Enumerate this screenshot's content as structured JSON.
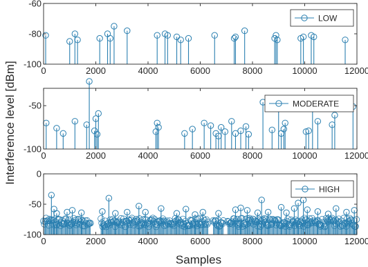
{
  "chart_data": {
    "type": "stem",
    "xlabel": "Samples",
    "ylabel": "Interference level [dBm]",
    "x_ticks": [
      "0",
      "2000",
      "4000",
      "6000",
      "8000",
      "10000",
      "12000"
    ],
    "xlim": [
      0,
      12000
    ],
    "colors": {
      "stem": "#2a7fb0",
      "axis": "#262626"
    },
    "marker": "circle",
    "panels": [
      {
        "name": "LOW",
        "ylim": [
          -100,
          -60
        ],
        "y_ticks": [
          "-60",
          "-80",
          "-100"
        ],
        "legend_position": "top-right",
        "points": [
          [
            80,
            -81
          ],
          [
            1000,
            -85
          ],
          [
            1200,
            -80
          ],
          [
            1300,
            -84
          ],
          [
            2150,
            -83
          ],
          [
            2450,
            -80
          ],
          [
            2550,
            -83
          ],
          [
            2700,
            -75
          ],
          [
            3200,
            -78
          ],
          [
            4350,
            -81
          ],
          [
            4650,
            -80
          ],
          [
            4750,
            -81
          ],
          [
            5100,
            -82
          ],
          [
            5250,
            -84
          ],
          [
            5550,
            -83
          ],
          [
            6550,
            -81
          ],
          [
            7300,
            -83
          ],
          [
            7350,
            -82
          ],
          [
            7700,
            -78
          ],
          [
            8850,
            -83
          ],
          [
            8900,
            -81
          ],
          [
            8950,
            -84
          ],
          [
            9850,
            -83
          ],
          [
            9950,
            -82
          ],
          [
            10250,
            -81
          ],
          [
            10350,
            -82
          ],
          [
            11550,
            -84
          ]
        ]
      },
      {
        "name": "MODERATE",
        "ylim": [
          -100,
          -30
        ],
        "y_ticks": [
          "-50",
          "-100"
        ],
        "legend_position": "top-right",
        "points": [
          [
            100,
            -70
          ],
          [
            500,
            -76
          ],
          [
            750,
            -82
          ],
          [
            1200,
            -68
          ],
          [
            1650,
            -72
          ],
          [
            1750,
            -22
          ],
          [
            1950,
            -79
          ],
          [
            2000,
            -65
          ],
          [
            2050,
            -83
          ],
          [
            2100,
            -59
          ],
          [
            4300,
            -80
          ],
          [
            4350,
            -70
          ],
          [
            4400,
            -75
          ],
          [
            5400,
            -82
          ],
          [
            5700,
            -77
          ],
          [
            6150,
            -70
          ],
          [
            6400,
            -73
          ],
          [
            6600,
            -82
          ],
          [
            6700,
            -85
          ],
          [
            6800,
            -75
          ],
          [
            6950,
            -80
          ],
          [
            7200,
            -68
          ],
          [
            7350,
            -82
          ],
          [
            7550,
            -79
          ],
          [
            7750,
            -74
          ],
          [
            7850,
            -83
          ],
          [
            8400,
            -46
          ],
          [
            8750,
            -78
          ],
          [
            9000,
            -53
          ],
          [
            9100,
            -82
          ],
          [
            9200,
            -77
          ],
          [
            9250,
            -70
          ],
          [
            10050,
            -80
          ],
          [
            10150,
            -79
          ],
          [
            10300,
            -51
          ],
          [
            10500,
            -68
          ],
          [
            11050,
            -72
          ],
          [
            11150,
            -61
          ],
          [
            11850,
            -51
          ]
        ]
      },
      {
        "name": "HIGH",
        "ylim": [
          -100,
          0
        ],
        "y_ticks": [
          "0",
          "-50",
          "-100"
        ],
        "legend_position": "top-right",
        "segments": [
          [
            0,
            1800
          ],
          [
            2200,
            6300
          ],
          [
            6500,
            6900
          ],
          [
            7050,
            12000
          ]
        ],
        "base_level": -80,
        "points": [
          [
            300,
            -35
          ],
          [
            400,
            -58
          ],
          [
            500,
            -65
          ],
          [
            900,
            -63
          ],
          [
            1100,
            -60
          ],
          [
            1450,
            -64
          ],
          [
            2250,
            -62
          ],
          [
            2500,
            -40
          ],
          [
            2750,
            -65
          ],
          [
            3200,
            -63
          ],
          [
            3650,
            -53
          ],
          [
            3900,
            -63
          ],
          [
            4500,
            -57
          ],
          [
            5100,
            -65
          ],
          [
            5450,
            -58
          ],
          [
            5800,
            -67
          ],
          [
            6100,
            -63
          ],
          [
            6700,
            -65
          ],
          [
            7350,
            -59
          ],
          [
            7550,
            -56
          ],
          [
            7800,
            -60
          ],
          [
            8200,
            -64
          ],
          [
            8350,
            -43
          ],
          [
            8600,
            -63
          ],
          [
            9100,
            -55
          ],
          [
            9300,
            -64
          ],
          [
            9600,
            -57
          ],
          [
            9750,
            -48
          ],
          [
            9950,
            -43
          ],
          [
            10100,
            -59
          ],
          [
            10500,
            -62
          ],
          [
            10900,
            -66
          ],
          [
            11200,
            -57
          ],
          [
            11600,
            -63
          ],
          [
            11900,
            -60
          ]
        ]
      }
    ]
  }
}
